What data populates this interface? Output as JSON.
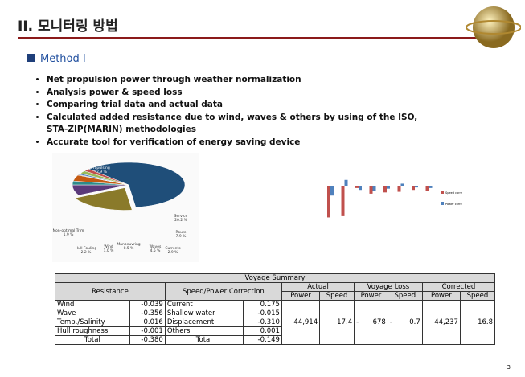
{
  "header": {
    "title": "II. 모니터링 방법"
  },
  "section": {
    "title": "Method I"
  },
  "bullets": [
    "Net propulsion power through weather normalization",
    "Analysis  power & speed loss",
    "Comparing trial data and actual data",
    "Calculated  added resistance  due to wind, waves & others by using  of the ISO,",
    "Accurate tool for verification  of energy saving device"
  ],
  "bullet_continuation": "STA-ZIP(MARIN)  methodologies",
  "pie": {
    "slices": [
      {
        "name": "Propulsing",
        "value": 62.9,
        "value_label": "62.9 %",
        "color": "#1f4e79"
      },
      {
        "name": "Service",
        "value": 20.2,
        "value_label": "20.2 %",
        "color": "#8a7a2a"
      },
      {
        "name": "Route",
        "value": 7.9,
        "value_label": "7.9 %",
        "color": "#5b3a7a"
      },
      {
        "name": "Currents",
        "value": 2.9,
        "value_label": "2.9 %",
        "color": "#2e8b8b"
      },
      {
        "name": "Waves",
        "value": 4.5,
        "value_label": "4.5 %",
        "color": "#c55a11"
      },
      {
        "name": "Manoeuvring",
        "value": 0.5,
        "value_label": "0.5 %",
        "color": "#7f7f7f"
      },
      {
        "name": "Wind",
        "value": 1.0,
        "value_label": "1.0 %",
        "color": "#4f81bd"
      },
      {
        "name": "Hull Fouling",
        "value": 2.2,
        "value_label": "2.2 %",
        "color": "#9bbb59"
      },
      {
        "name": "Non-optimal Trim",
        "value": 1.9,
        "value_label": "1.9 %",
        "color": "#c0504d"
      }
    ]
  },
  "bar_chart": {
    "series": [
      {
        "name": "Speed correction",
        "color": "#c0504d",
        "values": [
          -500,
          -480,
          -30,
          -120,
          -100,
          -90,
          -60,
          -70
        ]
      },
      {
        "name": "Power correction",
        "color": "#4f81bd",
        "values": [
          -150,
          100,
          -60,
          -80,
          -40,
          40,
          -20,
          -30
        ]
      }
    ],
    "ylim": [
      200,
      -700
    ]
  },
  "table": {
    "caption": "Voyage Summary",
    "headers": [
      "Resistance",
      "Speed/Power Correction",
      "Actual",
      "Voyage Loss",
      "Corrected"
    ],
    "subheaders": [
      "Power",
      "Speed",
      "Power",
      "Speed",
      "Power",
      "Speed"
    ],
    "rows": [
      [
        "Wind",
        "-0.039",
        "Current",
        "0.175"
      ],
      [
        "Wave",
        "-0.356",
        "Shallow water",
        "-0.015"
      ],
      [
        "Temp./Salinity",
        "0.016",
        "Displacement",
        "-0.310"
      ],
      [
        "Hull roughness",
        "-0.001",
        "Others",
        "0.001"
      ],
      [
        "Total",
        "-0.380",
        "Total",
        "-0.149"
      ]
    ],
    "summary": [
      "44,914",
      "17.4",
      "-",
      "678",
      "-",
      "0.7",
      "44,237",
      "16.8"
    ]
  },
  "page_number": "3"
}
